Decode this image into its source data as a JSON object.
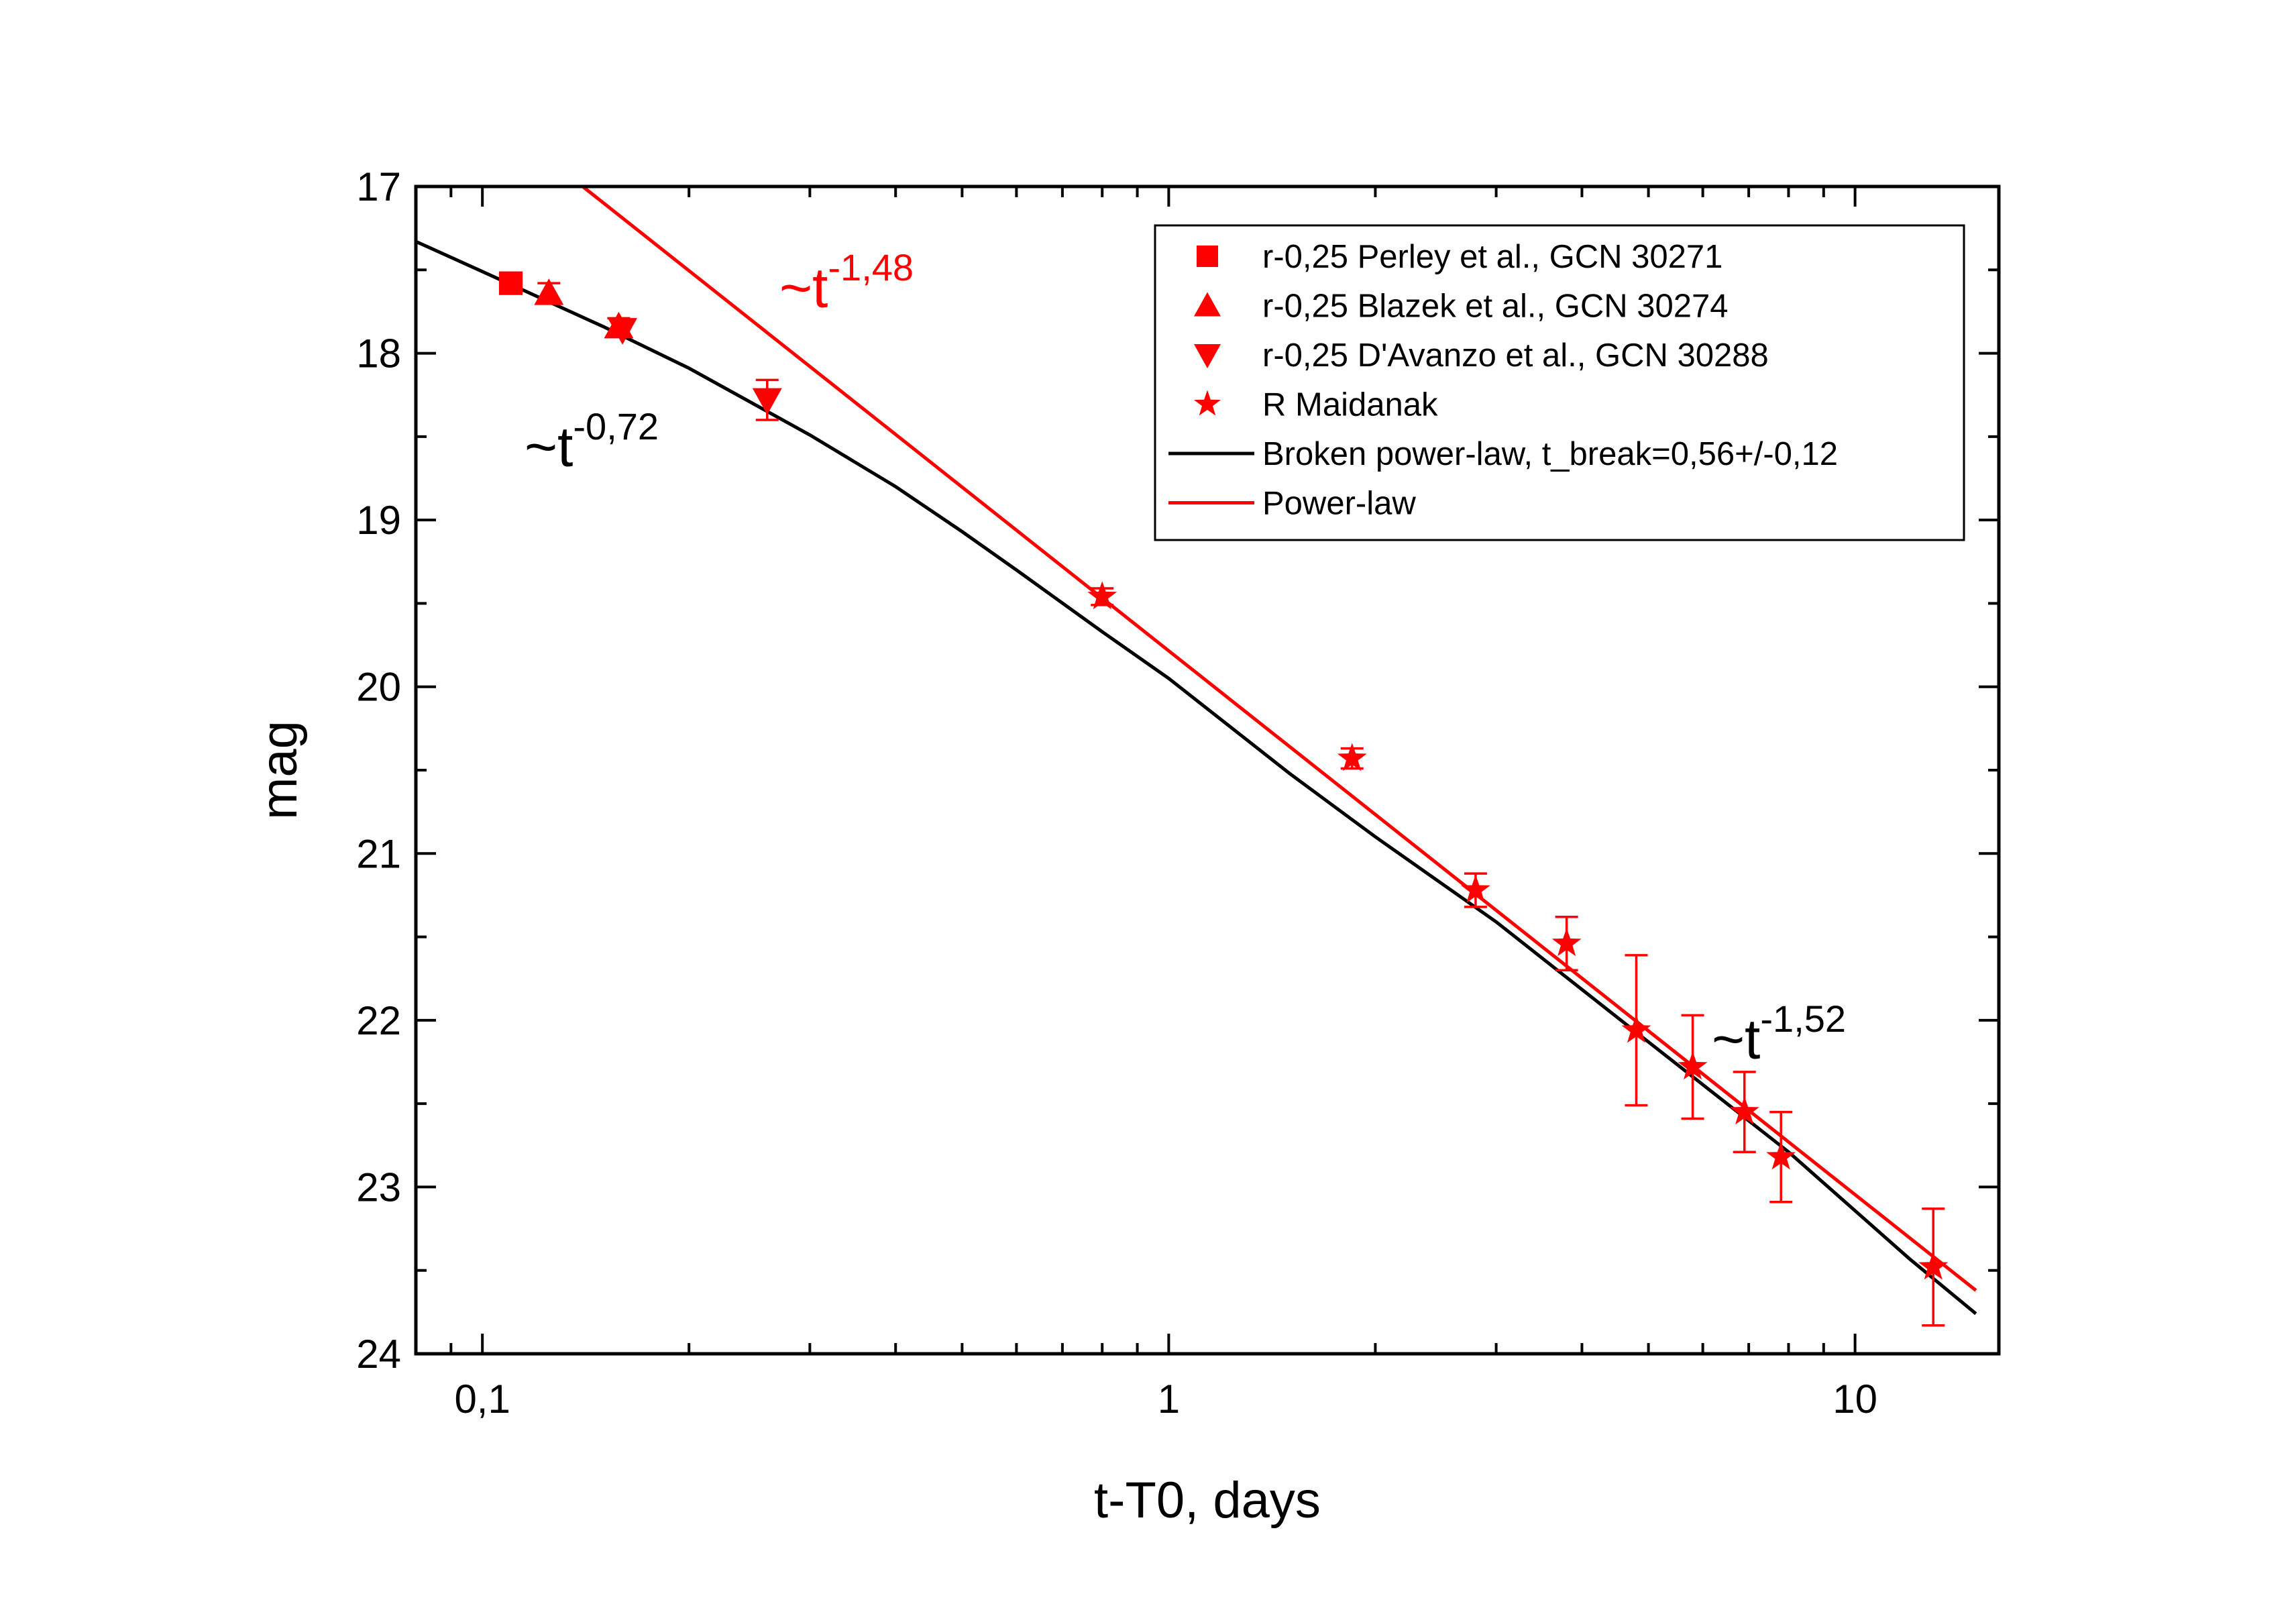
{
  "chart_data": {
    "type": "scatter",
    "title": "",
    "xlabel": "t-T0, days",
    "ylabel": "mag",
    "xscale": "log",
    "xlim": [
      0.08,
      16.2
    ],
    "ylim": [
      24,
      17
    ],
    "y_inverted": true,
    "grid": false,
    "legend_position": "top-right",
    "colors": {
      "data": "#ff0000",
      "broken_fit": "#000000",
      "power_fit": "#ff0000"
    },
    "x_ticks": [
      {
        "value": 0.1,
        "label": "0,1"
      },
      {
        "value": 1,
        "label": "1"
      },
      {
        "value": 10,
        "label": "10"
      }
    ],
    "y_ticks": [
      {
        "value": 17,
        "label": "17"
      },
      {
        "value": 18,
        "label": "18"
      },
      {
        "value": 19,
        "label": "19"
      },
      {
        "value": 20,
        "label": "20"
      },
      {
        "value": 21,
        "label": "21"
      },
      {
        "value": 22,
        "label": "22"
      },
      {
        "value": 23,
        "label": "23"
      },
      {
        "value": 24,
        "label": "24"
      }
    ],
    "series": [
      {
        "name": "r-0,25 Perley et al., GCN 30271",
        "marker": "square",
        "points": [
          {
            "x": 0.11,
            "y": 17.58,
            "err": 0.0
          }
        ]
      },
      {
        "name": "r-0,25 Blazek et al., GCN 30274",
        "marker": "triangle-up",
        "points": [
          {
            "x": 0.125,
            "y": 17.64,
            "err": 0.06
          },
          {
            "x": 0.158,
            "y": 17.84,
            "err": 0.05
          }
        ]
      },
      {
        "name": "r-0,25 D'Avanzo et al., GCN 30288",
        "marker": "triangle-down",
        "points": [
          {
            "x": 0.16,
            "y": 17.86,
            "err": 0.0
          },
          {
            "x": 0.26,
            "y": 18.28,
            "err": 0.12
          }
        ]
      },
      {
        "name": "R Maidanak",
        "marker": "star",
        "points": [
          {
            "x": 0.8,
            "y": 19.46,
            "err": 0.05
          },
          {
            "x": 1.85,
            "y": 20.43,
            "err": 0.06
          },
          {
            "x": 2.8,
            "y": 21.22,
            "err": 0.1
          },
          {
            "x": 3.8,
            "y": 21.54,
            "err": 0.16
          },
          {
            "x": 4.8,
            "y": 22.06,
            "err": 0.45
          },
          {
            "x": 5.8,
            "y": 22.28,
            "err": 0.31
          },
          {
            "x": 6.9,
            "y": 22.55,
            "err": 0.24
          },
          {
            "x": 7.8,
            "y": 22.82,
            "err": 0.27
          },
          {
            "x": 13.0,
            "y": 23.48,
            "err": 0.35
          }
        ]
      }
    ],
    "fits": [
      {
        "name": "Broken power-law, t_break=0,56+/-0,12",
        "type": "broken-power-law",
        "x": [
          0.08,
          0.1,
          0.15,
          0.2,
          0.3,
          0.4,
          0.5,
          0.6,
          0.8,
          1.0,
          1.5,
          2.0,
          3.0,
          5.0,
          8.0,
          12.0,
          15.0
        ],
        "y": [
          17.33,
          17.51,
          17.84,
          18.09,
          18.49,
          18.8,
          19.07,
          19.3,
          19.67,
          19.95,
          20.52,
          20.9,
          21.41,
          22.13,
          22.79,
          23.43,
          23.76
        ]
      },
      {
        "name": "Power-law",
        "type": "power-law",
        "x": [
          0.14,
          15.0
        ],
        "y": [
          17.0,
          23.62
        ]
      }
    ],
    "annotations": [
      {
        "base": "~t",
        "exponent": "-0,72",
        "color": "#000000"
      },
      {
        "base": "~t",
        "exponent": "-1,48",
        "color": "#ff0000"
      },
      {
        "base": "~t",
        "exponent": "-1,52",
        "color": "#000000"
      }
    ]
  }
}
